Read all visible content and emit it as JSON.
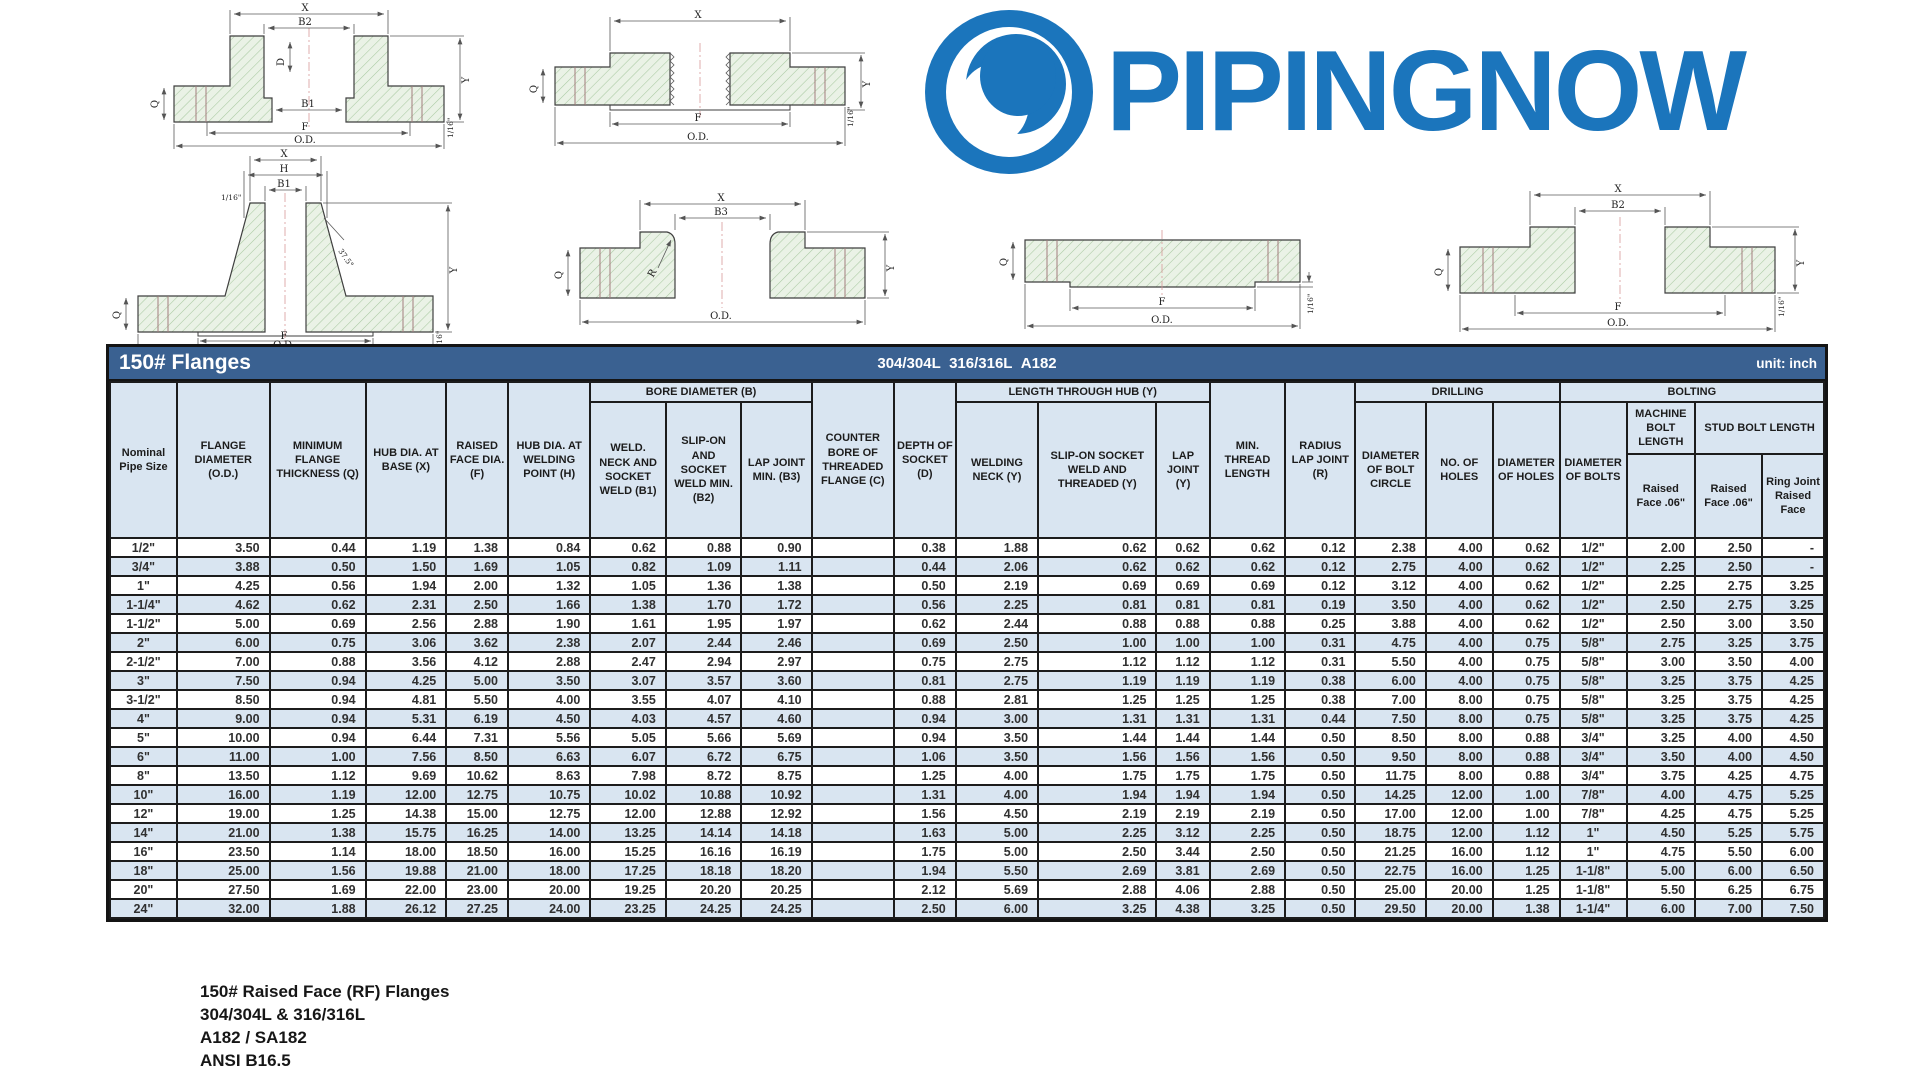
{
  "logo": {
    "text": "PIPINGNOW",
    "color": "#1b75bc"
  },
  "diagram_labels": {
    "x": "X",
    "b1": "B1",
    "b2": "B2",
    "b3": "B3",
    "d": "D",
    "h": "H",
    "f": "F",
    "od": "O.D.",
    "q": "Q",
    "y": "Y",
    "r": "R",
    "sixteenth": "1/16\"",
    "angle": "37.5°"
  },
  "table": {
    "title": "150# Flanges",
    "subtitle": "304/304L  316/316L  A182",
    "unit": "unit: inch",
    "headers": {
      "pipe_size": "Nominal Pipe Size",
      "flange_diameter": "FLANGE DIAMETER (O.D.)",
      "min_thickness": "MINIMUM FLANGE THICKNESS (Q)",
      "hub_dia_base": "HUB DIA. AT BASE (X)",
      "raised_face_dia": "RAISED FACE DIA. (F)",
      "hub_dia_welding": "HUB DIA. AT WELDING POINT (H)",
      "bore_group": "BORE DIAMETER (B)",
      "b1": "WELD. NECK AND SOCKET WELD (B1)",
      "b2": "SLIP-ON AND SOCKET WELD MIN. (B2)",
      "b3": "LAP JOINT MIN. (B3)",
      "counter_bore": "COUNTER BORE OF THREADED FLANGE (C)",
      "depth_socket": "DEPTH OF SOCKET (D)",
      "hub_group": "LENGTH THROUGH HUB (Y)",
      "welding_neck_y": "WELDING NECK (Y)",
      "slip_on_y": "SLIP-ON SOCKET WELD AND THREADED (Y)",
      "lap_joint_y": "LAP JOINT (Y)",
      "min_thread": "MIN. THREAD LENGTH",
      "radius_lap": "RADIUS LAP JOINT (R)",
      "drilling_group": "DRILLING",
      "bolt_circle": "DIAMETER OF BOLT CIRCLE",
      "no_holes": "NO. OF HOLES",
      "dia_holes": "DIAMETER OF HOLES",
      "bolting_group": "BOLTING",
      "dia_bolts": "DIAMETER OF BOLTS",
      "machine_bolt": "MACHINE BOLT LENGTH",
      "stud_bolt": "STUD BOLT LENGTH",
      "raised_face_06_a": "Raised Face .06\"",
      "raised_face_06_b": "Raised Face .06\"",
      "ring_joint": "Ring Joint Raised Face"
    },
    "rows": [
      [
        "1/2\"",
        "3.50",
        "0.44",
        "1.19",
        "1.38",
        "0.84",
        "0.62",
        "0.88",
        "0.90",
        "",
        "0.38",
        "1.88",
        "0.62",
        "0.62",
        "0.62",
        "0.12",
        "2.38",
        "4.00",
        "0.62",
        "1/2\"",
        "2.00",
        "2.50",
        "-"
      ],
      [
        "3/4\"",
        "3.88",
        "0.50",
        "1.50",
        "1.69",
        "1.05",
        "0.82",
        "1.09",
        "1.11",
        "",
        "0.44",
        "2.06",
        "0.62",
        "0.62",
        "0.62",
        "0.12",
        "2.75",
        "4.00",
        "0.62",
        "1/2\"",
        "2.25",
        "2.50",
        "-"
      ],
      [
        "1\"",
        "4.25",
        "0.56",
        "1.94",
        "2.00",
        "1.32",
        "1.05",
        "1.36",
        "1.38",
        "",
        "0.50",
        "2.19",
        "0.69",
        "0.69",
        "0.69",
        "0.12",
        "3.12",
        "4.00",
        "0.62",
        "1/2\"",
        "2.25",
        "2.75",
        "3.25"
      ],
      [
        "1-1/4\"",
        "4.62",
        "0.62",
        "2.31",
        "2.50",
        "1.66",
        "1.38",
        "1.70",
        "1.72",
        "",
        "0.56",
        "2.25",
        "0.81",
        "0.81",
        "0.81",
        "0.19",
        "3.50",
        "4.00",
        "0.62",
        "1/2\"",
        "2.50",
        "2.75",
        "3.25"
      ],
      [
        "1-1/2\"",
        "5.00",
        "0.69",
        "2.56",
        "2.88",
        "1.90",
        "1.61",
        "1.95",
        "1.97",
        "",
        "0.62",
        "2.44",
        "0.88",
        "0.88",
        "0.88",
        "0.25",
        "3.88",
        "4.00",
        "0.62",
        "1/2\"",
        "2.50",
        "3.00",
        "3.50"
      ],
      [
        "2\"",
        "6.00",
        "0.75",
        "3.06",
        "3.62",
        "2.38",
        "2.07",
        "2.44",
        "2.46",
        "",
        "0.69",
        "2.50",
        "1.00",
        "1.00",
        "1.00",
        "0.31",
        "4.75",
        "4.00",
        "0.75",
        "5/8\"",
        "2.75",
        "3.25",
        "3.75"
      ],
      [
        "2-1/2\"",
        "7.00",
        "0.88",
        "3.56",
        "4.12",
        "2.88",
        "2.47",
        "2.94",
        "2.97",
        "",
        "0.75",
        "2.75",
        "1.12",
        "1.12",
        "1.12",
        "0.31",
        "5.50",
        "4.00",
        "0.75",
        "5/8\"",
        "3.00",
        "3.50",
        "4.00"
      ],
      [
        "3\"",
        "7.50",
        "0.94",
        "4.25",
        "5.00",
        "3.50",
        "3.07",
        "3.57",
        "3.60",
        "",
        "0.81",
        "2.75",
        "1.19",
        "1.19",
        "1.19",
        "0.38",
        "6.00",
        "4.00",
        "0.75",
        "5/8\"",
        "3.25",
        "3.75",
        "4.25"
      ],
      [
        "3-1/2\"",
        "8.50",
        "0.94",
        "4.81",
        "5.50",
        "4.00",
        "3.55",
        "4.07",
        "4.10",
        "",
        "0.88",
        "2.81",
        "1.25",
        "1.25",
        "1.25",
        "0.38",
        "7.00",
        "8.00",
        "0.75",
        "5/8\"",
        "3.25",
        "3.75",
        "4.25"
      ],
      [
        "4\"",
        "9.00",
        "0.94",
        "5.31",
        "6.19",
        "4.50",
        "4.03",
        "4.57",
        "4.60",
        "",
        "0.94",
        "3.00",
        "1.31",
        "1.31",
        "1.31",
        "0.44",
        "7.50",
        "8.00",
        "0.75",
        "5/8\"",
        "3.25",
        "3.75",
        "4.25"
      ],
      [
        "5\"",
        "10.00",
        "0.94",
        "6.44",
        "7.31",
        "5.56",
        "5.05",
        "5.66",
        "5.69",
        "",
        "0.94",
        "3.50",
        "1.44",
        "1.44",
        "1.44",
        "0.50",
        "8.50",
        "8.00",
        "0.88",
        "3/4\"",
        "3.25",
        "4.00",
        "4.50"
      ],
      [
        "6\"",
        "11.00",
        "1.00",
        "7.56",
        "8.50",
        "6.63",
        "6.07",
        "6.72",
        "6.75",
        "",
        "1.06",
        "3.50",
        "1.56",
        "1.56",
        "1.56",
        "0.50",
        "9.50",
        "8.00",
        "0.88",
        "3/4\"",
        "3.50",
        "4.00",
        "4.50"
      ],
      [
        "8\"",
        "13.50",
        "1.12",
        "9.69",
        "10.62",
        "8.63",
        "7.98",
        "8.72",
        "8.75",
        "",
        "1.25",
        "4.00",
        "1.75",
        "1.75",
        "1.75",
        "0.50",
        "11.75",
        "8.00",
        "0.88",
        "3/4\"",
        "3.75",
        "4.25",
        "4.75"
      ],
      [
        "10\"",
        "16.00",
        "1.19",
        "12.00",
        "12.75",
        "10.75",
        "10.02",
        "10.88",
        "10.92",
        "",
        "1.31",
        "4.00",
        "1.94",
        "1.94",
        "1.94",
        "0.50",
        "14.25",
        "12.00",
        "1.00",
        "7/8\"",
        "4.00",
        "4.75",
        "5.25"
      ],
      [
        "12\"",
        "19.00",
        "1.25",
        "14.38",
        "15.00",
        "12.75",
        "12.00",
        "12.88",
        "12.92",
        "",
        "1.56",
        "4.50",
        "2.19",
        "2.19",
        "2.19",
        "0.50",
        "17.00",
        "12.00",
        "1.00",
        "7/8\"",
        "4.25",
        "4.75",
        "5.25"
      ],
      [
        "14\"",
        "21.00",
        "1.38",
        "15.75",
        "16.25",
        "14.00",
        "13.25",
        "14.14",
        "14.18",
        "",
        "1.63",
        "5.00",
        "2.25",
        "3.12",
        "2.25",
        "0.50",
        "18.75",
        "12.00",
        "1.12",
        "1\"",
        "4.50",
        "5.25",
        "5.75"
      ],
      [
        "16\"",
        "23.50",
        "1.14",
        "18.00",
        "18.50",
        "16.00",
        "15.25",
        "16.16",
        "16.19",
        "",
        "1.75",
        "5.00",
        "2.50",
        "3.44",
        "2.50",
        "0.50",
        "21.25",
        "16.00",
        "1.12",
        "1\"",
        "4.75",
        "5.50",
        "6.00"
      ],
      [
        "18\"",
        "25.00",
        "1.56",
        "19.88",
        "21.00",
        "18.00",
        "17.25",
        "18.18",
        "18.20",
        "",
        "1.94",
        "5.50",
        "2.69",
        "3.81",
        "2.69",
        "0.50",
        "22.75",
        "16.00",
        "1.25",
        "1-1/8\"",
        "5.00",
        "6.00",
        "6.50"
      ],
      [
        "20\"",
        "27.50",
        "1.69",
        "22.00",
        "23.00",
        "20.00",
        "19.25",
        "20.20",
        "20.25",
        "",
        "2.12",
        "5.69",
        "2.88",
        "4.06",
        "2.88",
        "0.50",
        "25.00",
        "20.00",
        "1.25",
        "1-1/8\"",
        "5.50",
        "6.25",
        "6.75"
      ],
      [
        "24\"",
        "32.00",
        "1.88",
        "26.12",
        "27.25",
        "24.00",
        "23.25",
        "24.25",
        "24.25",
        "",
        "2.50",
        "6.00",
        "3.25",
        "4.38",
        "3.25",
        "0.50",
        "29.50",
        "20.00",
        "1.38",
        "1-1/4\"",
        "6.00",
        "7.00",
        "7.50"
      ]
    ]
  },
  "footer": {
    "lines": [
      "150# Raised Face (RF) Flanges",
      "304/304L & 316/316L",
      "A182 / SA182",
      "ANSI B16.5"
    ]
  }
}
